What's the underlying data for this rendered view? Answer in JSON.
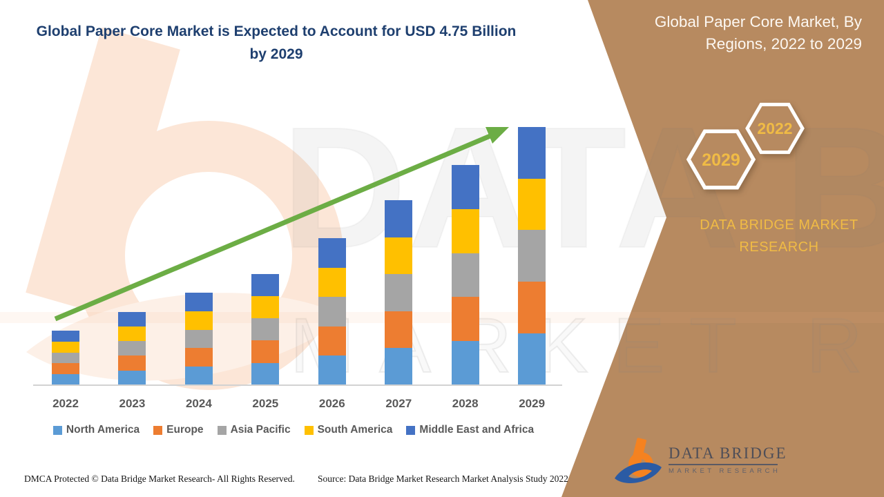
{
  "header": {
    "title": "Global Paper Core Market is Expected to Account for USD 4.75 Billion by 2029"
  },
  "side_panel": {
    "title": "Global Paper Core Market, By Regions, 2022 to 2029",
    "hexagon_years": {
      "front": "2029",
      "back": "2022"
    },
    "brand": "DATA BRIDGE MARKET RESEARCH",
    "colors": {
      "background": "#B78A60",
      "gold": "#F0BB45"
    }
  },
  "logo": {
    "name": "DATA BRIDGE",
    "tagline": "MARKET RESEARCH"
  },
  "watermark": {
    "line1": "DATA BRIDGE",
    "line2": "MARKET RESEARCH"
  },
  "footer": {
    "dmca": "DMCA Protected © Data Bridge Market Research- All Rights Reserved.",
    "source": "Source: Data Bridge Market Research Market Analysis Study 2022"
  },
  "chart_data": {
    "type": "bar",
    "stacked": true,
    "title": "Global Paper Core Market is Expected to Account for USD 4.75 Billion by 2029",
    "unit": "USD Billion",
    "categories": [
      "2022",
      "2023",
      "2024",
      "2025",
      "2026",
      "2027",
      "2028",
      "2029"
    ],
    "series": [
      {
        "name": "North America",
        "color": "#5B9BD5",
        "values": [
          0.2,
          0.27,
          0.34,
          0.41,
          0.54,
          0.68,
          0.81,
          0.95
        ]
      },
      {
        "name": "Europe",
        "color": "#ED7D31",
        "values": [
          0.2,
          0.27,
          0.34,
          0.41,
          0.54,
          0.68,
          0.81,
          0.95
        ]
      },
      {
        "name": "Asia Pacific",
        "color": "#A5A5A5",
        "values": [
          0.2,
          0.27,
          0.34,
          0.41,
          0.54,
          0.68,
          0.81,
          0.95
        ]
      },
      {
        "name": "South America",
        "color": "#FFC000",
        "values": [
          0.2,
          0.27,
          0.34,
          0.41,
          0.54,
          0.68,
          0.81,
          0.95
        ]
      },
      {
        "name": "Middle East and Africa",
        "color": "#4472C4",
        "values": [
          0.2,
          0.27,
          0.34,
          0.41,
          0.54,
          0.68,
          0.81,
          0.95
        ]
      }
    ],
    "totals": [
      1.0,
      1.35,
      1.7,
      2.05,
      2.7,
      3.4,
      4.05,
      4.75
    ],
    "ylim": [
      0,
      4.75
    ],
    "grid": false,
    "legend_position": "bottom",
    "trend_arrow": {
      "from_year": "2022",
      "to_year": "2029",
      "color": "#6CAD45"
    }
  }
}
